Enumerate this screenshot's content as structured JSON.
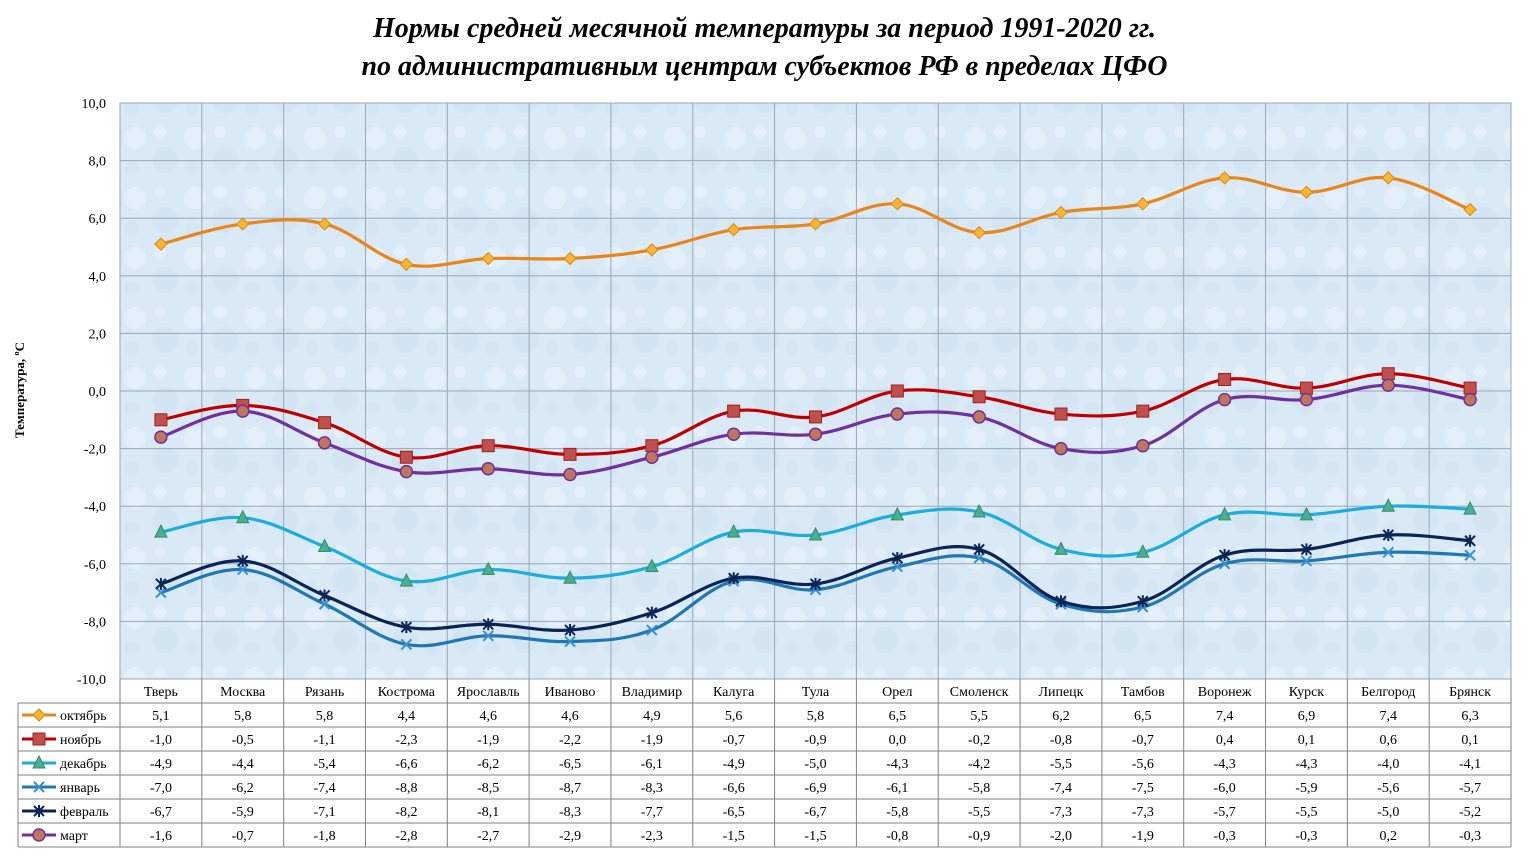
{
  "chart_data": {
    "type": "line",
    "title": "Нормы средней месячной температуры за период 1991-2020 гг.",
    "subtitle": "по административным центрам субъектов РФ в пределах ЦФО",
    "ylabel": "Температура, ºС",
    "xlabel": "",
    "ylim": [
      -10,
      10
    ],
    "yticks": [
      "10,0",
      "8,0",
      "6,0",
      "4,0",
      "2,0",
      "0,0",
      "-2,0",
      "-4,0",
      "-6,0",
      "-8,0",
      "-10,0"
    ],
    "grid": true,
    "legend": "data-table-below",
    "categories": [
      "Тверь",
      "Москва",
      "Рязань",
      "Кострома",
      "Ярославль",
      "Иваново",
      "Владимир",
      "Калуга",
      "Тула",
      "Орел",
      "Смоленск",
      "Липецк",
      "Тамбов",
      "Воронеж",
      "Курск",
      "Белгород",
      "Брянск"
    ],
    "series": [
      {
        "name": "октябрь",
        "color": "#E8861A",
        "marker": "diamond",
        "markerColor": "#F5A623",
        "values": [
          5.1,
          5.8,
          5.8,
          4.4,
          4.6,
          4.6,
          4.9,
          5.6,
          5.8,
          6.5,
          5.5,
          6.2,
          6.5,
          7.4,
          6.9,
          7.4,
          6.3
        ],
        "labels": [
          "5,1",
          "5,8",
          "5,8",
          "4,4",
          "4,6",
          "4,6",
          "4,9",
          "5,6",
          "5,8",
          "6,5",
          "5,5",
          "6,2",
          "6,5",
          "7,4",
          "6,9",
          "7,4",
          "6,3"
        ]
      },
      {
        "name": "ноябрь",
        "color": "#C00000",
        "marker": "square",
        "markerColor": "#C0504D",
        "values": [
          -1.0,
          -0.5,
          -1.1,
          -2.3,
          -1.9,
          -2.2,
          -1.9,
          -0.7,
          -0.9,
          0.0,
          -0.2,
          -0.8,
          -0.7,
          0.4,
          0.1,
          0.6,
          0.1
        ],
        "labels": [
          "-1,0",
          "-0,5",
          "-1,1",
          "-2,3",
          "-1,9",
          "-2,2",
          "-1,9",
          "-0,7",
          "-0,9",
          "0,0",
          "-0,2",
          "-0,8",
          "-0,7",
          "0,4",
          "0,1",
          "0,6",
          "0,1"
        ]
      },
      {
        "name": "декабрь",
        "color": "#1AADE0",
        "marker": "triangle",
        "markerColor": "#4BAE8E",
        "values": [
          -4.9,
          -4.4,
          -5.4,
          -6.6,
          -6.2,
          -6.5,
          -6.1,
          -4.9,
          -5.0,
          -4.3,
          -4.2,
          -5.5,
          -5.6,
          -4.3,
          -4.3,
          -4.0,
          -4.1
        ],
        "labels": [
          "-4,9",
          "-4,4",
          "-5,4",
          "-6,6",
          "-6,2",
          "-6,5",
          "-6,1",
          "-4,9",
          "-5,0",
          "-4,3",
          "-4,2",
          "-5,5",
          "-5,6",
          "-4,3",
          "-4,3",
          "-4,0",
          "-4,1"
        ]
      },
      {
        "name": "январь",
        "color": "#1F77B4",
        "marker": "x",
        "markerColor": "#1F77B4",
        "values": [
          -7.0,
          -6.2,
          -7.4,
          -8.8,
          -8.5,
          -8.7,
          -8.3,
          -6.6,
          -6.9,
          -6.1,
          -5.8,
          -7.4,
          -7.5,
          -6.0,
          -5.9,
          -5.6,
          -5.7
        ],
        "labels": [
          "-7,0",
          "-6,2",
          "-7,4",
          "-8,8",
          "-8,5",
          "-8,7",
          "-8,3",
          "-6,6",
          "-6,9",
          "-6,1",
          "-5,8",
          "-7,4",
          "-7,5",
          "-6,0",
          "-5,9",
          "-5,6",
          "-5,7"
        ]
      },
      {
        "name": "февраль",
        "color": "#0B2454",
        "marker": "star",
        "markerColor": "#0B2454",
        "values": [
          -6.7,
          -5.9,
          -7.1,
          -8.2,
          -8.1,
          -8.3,
          -7.7,
          -6.5,
          -6.7,
          -5.8,
          -5.5,
          -7.3,
          -7.3,
          -5.7,
          -5.5,
          -5.0,
          -5.2
        ],
        "labels": [
          "-6,7",
          "-5,9",
          "-7,1",
          "-8,2",
          "-8,1",
          "-8,3",
          "-7,7",
          "-6,5",
          "-6,7",
          "-5,8",
          "-5,5",
          "-7,3",
          "-7,3",
          "-5,7",
          "-5,5",
          "-5,0",
          "-5,2"
        ]
      },
      {
        "name": "март",
        "color": "#7030A0",
        "marker": "circle",
        "markerColor": "#C0765A",
        "values": [
          -1.6,
          -0.7,
          -1.8,
          -2.8,
          -2.7,
          -2.9,
          -2.3,
          -1.5,
          -1.5,
          -0.8,
          -0.9,
          -2.0,
          -1.9,
          -0.3,
          -0.3,
          0.2,
          -0.3
        ],
        "labels": [
          "-1,6",
          "-0,7",
          "-1,8",
          "-2,8",
          "-2,7",
          "-2,9",
          "-2,3",
          "-1,5",
          "-1,5",
          "-0,8",
          "-0,9",
          "-2,0",
          "-1,9",
          "-0,3",
          "-0,3",
          "0,2",
          "-0,3"
        ]
      }
    ],
    "colors": {
      "plot_background": "#DCEBF7",
      "grid": "#9AA7B4",
      "border": "#808080"
    }
  }
}
